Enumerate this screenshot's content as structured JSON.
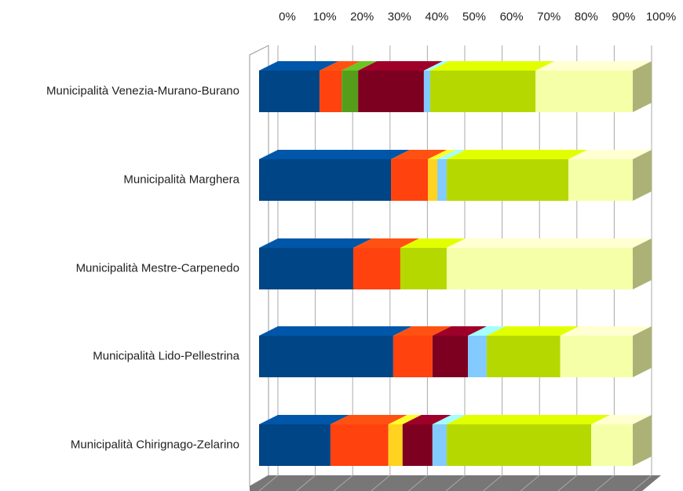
{
  "chart_data": {
    "type": "bar3d_stacked_horizontal",
    "categories": [
      "Municipalità Venezia-Murano-Burano",
      "Municipalità Marghera",
      "Municipalità Mestre-Carpenedo",
      "Municipalità Lido-Pellestrina",
      "Municipalità Chirignago-Zelarino"
    ],
    "series": [
      {
        "color": "#004586",
        "values": [
          16.2,
          35.3,
          25.2,
          35.9,
          19.1
        ]
      },
      {
        "color": "#ff420e",
        "values": [
          5.9,
          9.9,
          12.6,
          10.5,
          15.5
        ]
      },
      {
        "color": "#579d1c",
        "values": [
          4.4,
          0,
          0,
          0,
          0
        ]
      },
      {
        "color": "#ffd320",
        "values": [
          0,
          2.5,
          0,
          0,
          3.8
        ]
      },
      {
        "color": "#7e0021",
        "values": [
          17.6,
          0,
          0,
          9.5,
          8.0
        ]
      },
      {
        "color": "#83caff",
        "values": [
          1.7,
          2.5,
          0,
          5.0,
          3.8
        ]
      },
      {
        "color": "#b5d900",
        "values": [
          28.2,
          32.6,
          12.4,
          19.7,
          38.7
        ]
      },
      {
        "color": "#f5ffa8",
        "values": [
          26.0,
          17.2,
          49.8,
          19.4,
          11.1
        ]
      }
    ],
    "xlim": [
      0,
      100
    ],
    "xticks": [
      {
        "value": 0,
        "label": "0%"
      },
      {
        "value": 10,
        "label": "10%"
      },
      {
        "value": 20,
        "label": "20%"
      },
      {
        "value": 30,
        "label": "30%"
      },
      {
        "value": 40,
        "label": "40%"
      },
      {
        "value": 50,
        "label": "50%"
      },
      {
        "value": 60,
        "label": "60%"
      },
      {
        "value": 70,
        "label": "70%"
      },
      {
        "value": 80,
        "label": "80%"
      },
      {
        "value": 90,
        "label": "90%"
      },
      {
        "value": 100,
        "label": "100%"
      }
    ],
    "grid": true
  }
}
